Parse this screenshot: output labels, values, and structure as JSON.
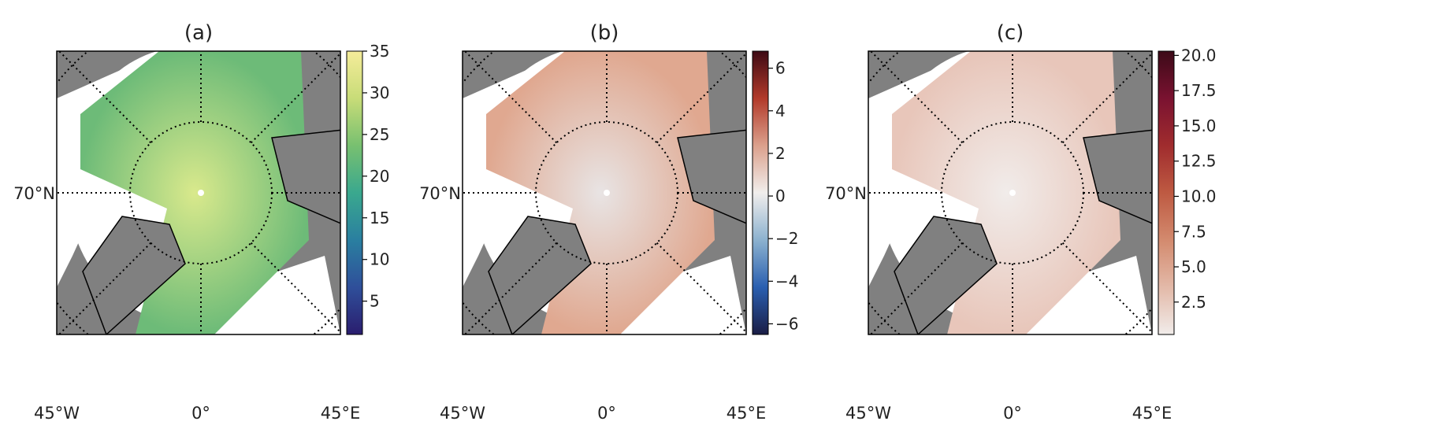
{
  "chart_data": [
    {
      "type": "heatmap",
      "title": "(a)",
      "projection": "north polar stereographic",
      "lat_label": "70°N",
      "lon_labels": [
        "45°W",
        "0°",
        "45°E"
      ],
      "colorbar": {
        "min": 1,
        "max": 35,
        "ticks": [
          5,
          10,
          15,
          20,
          25,
          30,
          35
        ],
        "tick_labels": [
          "5",
          "10",
          "15",
          "20",
          "25",
          "30",
          "35"
        ],
        "colors": [
          "#2a1d6e",
          "#2f4f9a",
          "#2a7fa0",
          "#3aa88e",
          "#78c070",
          "#c8dc78",
          "#f5ec9a"
        ]
      },
      "field_center_color": "#d9e98c",
      "field_edge_color": "#6dbb78"
    },
    {
      "type": "heatmap",
      "title": "(b)",
      "projection": "north polar stereographic",
      "lat_label": "70°N",
      "lon_labels": [
        "45°W",
        "0°",
        "45°E"
      ],
      "colorbar": {
        "min": -6.5,
        "max": 6.8,
        "ticks": [
          -6,
          -4,
          -2,
          0,
          2,
          4,
          6
        ],
        "tick_labels": [
          "−6",
          "−4",
          "−2",
          "0",
          "2",
          "4",
          "6"
        ],
        "colors": [
          "#1a1d45",
          "#2a5fb0",
          "#8cb2cf",
          "#f1eeec",
          "#dba08c",
          "#b23a2a",
          "#3d0a14"
        ]
      },
      "field_center_color": "#e8e4e4",
      "field_edge_color": "#e0a890"
    },
    {
      "type": "heatmap",
      "title": "(c)",
      "projection": "north polar stereographic",
      "lat_label": "70°N",
      "lon_labels": [
        "45°W",
        "0°",
        "45°E"
      ],
      "colorbar": {
        "min": 0.2,
        "max": 20.3,
        "ticks": [
          2.5,
          5.0,
          7.5,
          10.0,
          12.5,
          15.0,
          17.5,
          20.0
        ],
        "tick_labels": [
          "2.5",
          "5.0",
          "7.5",
          "10.0",
          "12.5",
          "15.0",
          "17.5",
          "20.0"
        ],
        "colors": [
          "#f1ecea",
          "#e3b9a8",
          "#d38a6e",
          "#be5a42",
          "#a02c2e",
          "#7a1230",
          "#3c0a18"
        ]
      },
      "field_center_color": "#f1ecea",
      "field_edge_color": "#e8c6ba"
    }
  ]
}
